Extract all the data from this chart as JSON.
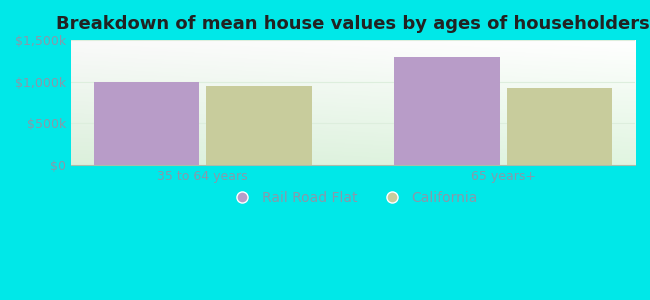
{
  "title": "Breakdown of mean house values by ages of householders",
  "categories": [
    "35 to 64 years",
    "65 years+"
  ],
  "rail_road_flat": [
    1000000,
    1300000
  ],
  "california": [
    950000,
    925000
  ],
  "bar_color_rrf": "#b89cc8",
  "bar_color_ca": "#c8cc9c",
  "background_outer": "#00e8e8",
  "ylim": [
    0,
    1500000
  ],
  "yticks": [
    0,
    500000,
    1000000,
    1500000
  ],
  "ytick_labels": [
    "$0",
    "$500k",
    "$1,000k",
    "$1,500k"
  ],
  "legend_rrf": "Rail Road Flat",
  "legend_ca": "California",
  "bar_width": 0.28,
  "title_fontsize": 13,
  "tick_fontsize": 9,
  "legend_fontsize": 10,
  "tick_color": "#8899aa",
  "grid_color": "#ddeedd",
  "bg_top_color": "#f0fff8",
  "bg_bottom_color": "#d8f0d8"
}
